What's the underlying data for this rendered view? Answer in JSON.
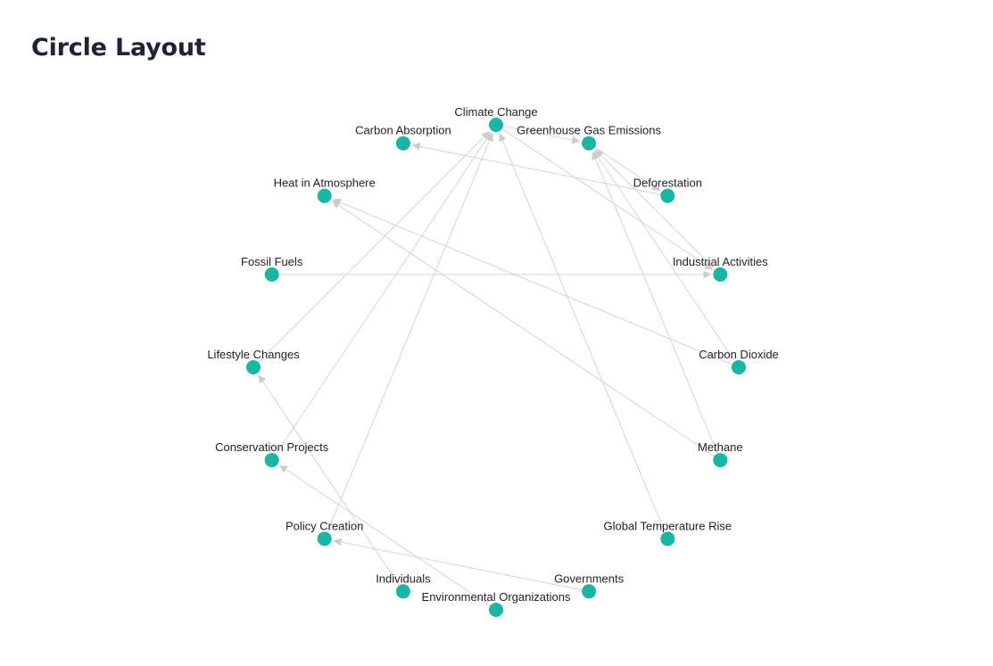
{
  "header": {
    "title": "Circle Layout"
  },
  "colors": {
    "node": "#1ab5a4",
    "edge": "#d3d3d3",
    "label": "#222222",
    "title": "#1e2433"
  },
  "graph": {
    "layout": "circle",
    "nodes": [
      {
        "id": "climate_change",
        "label": "Climate Change"
      },
      {
        "id": "greenhouse",
        "label": "Greenhouse Gas Emissions"
      },
      {
        "id": "deforestation",
        "label": "Deforestation"
      },
      {
        "id": "industrial",
        "label": "Industrial Activities"
      },
      {
        "id": "co2",
        "label": "Carbon Dioxide"
      },
      {
        "id": "methane",
        "label": "Methane"
      },
      {
        "id": "temp_rise",
        "label": "Global Temperature Rise"
      },
      {
        "id": "governments",
        "label": "Governments"
      },
      {
        "id": "env_orgs",
        "label": "Environmental Organizations"
      },
      {
        "id": "individuals",
        "label": "Individuals"
      },
      {
        "id": "policy",
        "label": "Policy Creation"
      },
      {
        "id": "conservation",
        "label": "Conservation Projects"
      },
      {
        "id": "lifestyle",
        "label": "Lifestyle Changes"
      },
      {
        "id": "fossil",
        "label": "Fossil Fuels"
      },
      {
        "id": "heat",
        "label": "Heat in Atmosphere"
      },
      {
        "id": "absorption",
        "label": "Carbon Absorption"
      }
    ],
    "edges": [
      {
        "from": "climate_change",
        "to": "greenhouse"
      },
      {
        "from": "greenhouse",
        "to": "deforestation"
      },
      {
        "from": "climate_change",
        "to": "industrial"
      },
      {
        "from": "deforestation",
        "to": "absorption"
      },
      {
        "from": "industrial",
        "to": "greenhouse"
      },
      {
        "from": "fossil",
        "to": "industrial"
      },
      {
        "from": "co2",
        "to": "greenhouse"
      },
      {
        "from": "co2",
        "to": "heat"
      },
      {
        "from": "methane",
        "to": "greenhouse"
      },
      {
        "from": "methane",
        "to": "heat"
      },
      {
        "from": "temp_rise",
        "to": "climate_change"
      },
      {
        "from": "lifestyle",
        "to": "climate_change"
      },
      {
        "from": "conservation",
        "to": "climate_change"
      },
      {
        "from": "policy",
        "to": "climate_change"
      },
      {
        "from": "governments",
        "to": "policy"
      },
      {
        "from": "env_orgs",
        "to": "conservation"
      },
      {
        "from": "individuals",
        "to": "lifestyle"
      }
    ]
  }
}
